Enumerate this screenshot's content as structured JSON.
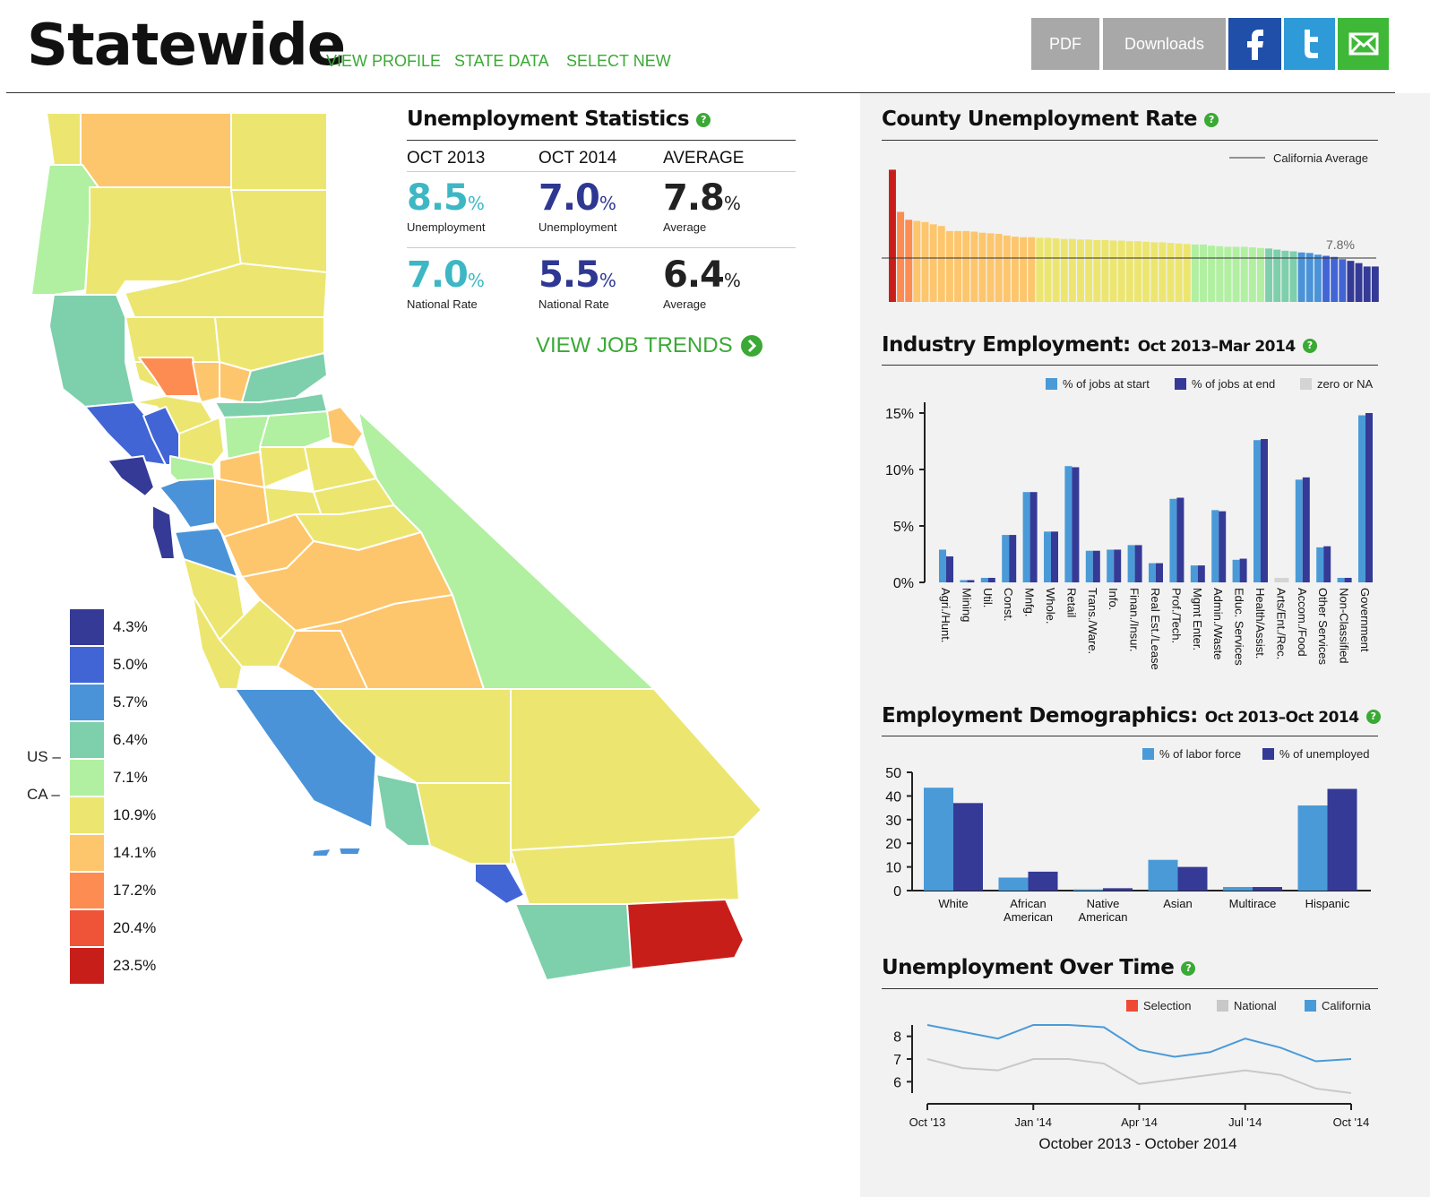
{
  "header": {
    "title": "Statewide",
    "nav": [
      "VIEW PROFILE",
      "STATE DATA",
      "SELECT NEW"
    ],
    "buttons": {
      "pdf": "PDF",
      "downloads": "Downloads"
    },
    "colors": {
      "pdf": "#a8a8a8",
      "downloads": "#a8a8a8",
      "facebook": "#1f4fa8",
      "twitter": "#2f9ad8",
      "email": "#3fb838"
    }
  },
  "map": {
    "legend": [
      {
        "label": "4.3%",
        "color": "#343a96"
      },
      {
        "label": "5.0%",
        "color": "#4265d6"
      },
      {
        "label": "5.7%",
        "color": "#4a93d8"
      },
      {
        "label": "6.4%",
        "color": "#7ecfac"
      },
      {
        "label": "7.1%",
        "color": "#b0f0a0"
      },
      {
        "label": "10.9%",
        "color": "#ece670"
      },
      {
        "label": "14.1%",
        "color": "#fdc66c"
      },
      {
        "label": "17.2%",
        "color": "#fd8c52"
      },
      {
        "label": "20.4%",
        "color": "#ef5338"
      },
      {
        "label": "23.5%",
        "color": "#c81e1a"
      }
    ],
    "markers": {
      "us": "US –",
      "ca": "CA –"
    }
  },
  "stats": {
    "title": "Unemployment Statistics",
    "columns": [
      "OCT 2013",
      "OCT 2014",
      "AVERAGE"
    ],
    "row1": [
      {
        "value": "8.5",
        "unit": "%",
        "label": "Unemployment",
        "color": "#3db7c4"
      },
      {
        "value": "7.0",
        "unit": "%",
        "label": "Unemployment",
        "color": "#2e3791"
      },
      {
        "value": "7.8",
        "unit": "%",
        "label": "Average",
        "color": "#222222"
      }
    ],
    "row2": [
      {
        "value": "7.0",
        "unit": "%",
        "label": "National Rate",
        "color": "#3db7c4"
      },
      {
        "value": "5.5",
        "unit": "%",
        "label": "National Rate",
        "color": "#2e3791"
      },
      {
        "value": "6.4",
        "unit": "%",
        "label": "Average",
        "color": "#222222"
      }
    ],
    "job_trends": "VIEW JOB TRENDS"
  },
  "county": {
    "title": "County Unemployment Rate",
    "legend": "California Average",
    "avg_label": "7.8%"
  },
  "industry": {
    "title": "Industry Employment:",
    "subtitle": "Oct 2013–Mar 2014",
    "legend": [
      "% of jobs at start",
      "% of jobs at end",
      "zero or NA"
    ]
  },
  "demographics": {
    "title": "Employment Demographics:",
    "subtitle": "Oct 2013–Oct 2014",
    "legend": [
      "% of labor force",
      "% of unemployed"
    ]
  },
  "overtime": {
    "title": "Unemployment Over Time",
    "legend": [
      "Selection",
      "National",
      "California"
    ],
    "xlabel": "October 2013 - October 2014"
  },
  "chart_data": [
    {
      "type": "bar",
      "name_key": "county",
      "values": [
        23.5,
        16.0,
        14.6,
        14.4,
        14.2,
        13.8,
        13.5,
        12.6,
        12.6,
        12.6,
        12.5,
        12.3,
        12.2,
        12.1,
        11.8,
        11.6,
        11.5,
        11.5,
        11.4,
        11.4,
        11.3,
        11.2,
        11.2,
        11.1,
        11.1,
        11.0,
        11.0,
        10.9,
        10.9,
        10.8,
        10.8,
        10.7,
        10.6,
        10.6,
        10.5,
        10.4,
        10.3,
        10.2,
        10.2,
        10.0,
        9.9,
        9.8,
        9.8,
        9.8,
        9.7,
        9.6,
        9.5,
        9.3,
        9.1,
        9.0,
        8.8,
        8.7,
        8.4,
        8.2,
        8.0,
        7.6,
        7.3,
        6.9,
        6.3,
        6.3
      ],
      "reference_line": 7.8,
      "ylim": [
        0,
        25
      ]
    },
    {
      "type": "bar",
      "name_key": "industry",
      "categories": [
        "Agri./Hunt.",
        "Mining",
        "Util.",
        "Const.",
        "Mnfg.",
        "Whole.",
        "Retail",
        "Trans./Ware.",
        "Info.",
        "Finan./Insur.",
        "Real Est./Lease",
        "Prof./Tech.",
        "Mgmt Enter.",
        "Admin./Waste",
        "Educ. Services",
        "Health/Assist.",
        "Arts/Ent./Rec.",
        "Accom./Food",
        "Other Services",
        "Non-Classified",
        "Government"
      ],
      "series": [
        {
          "name": "% of jobs at start",
          "values": [
            2.9,
            0.2,
            0.4,
            4.2,
            8.0,
            4.5,
            10.3,
            2.8,
            2.9,
            3.3,
            1.7,
            7.4,
            1.5,
            6.4,
            2.0,
            12.6,
            0.4,
            9.1,
            3.1,
            0.4,
            14.8
          ]
        },
        {
          "name": "% of jobs at end",
          "values": [
            2.3,
            0.2,
            0.4,
            4.2,
            8.0,
            4.5,
            10.2,
            2.8,
            2.9,
            3.3,
            1.7,
            7.5,
            1.5,
            6.3,
            2.1,
            12.7,
            0.4,
            9.3,
            3.2,
            0.4,
            15.0
          ]
        }
      ],
      "zero_or_na": [
        false,
        false,
        false,
        false,
        false,
        false,
        false,
        false,
        false,
        false,
        false,
        false,
        false,
        false,
        false,
        false,
        true,
        false,
        false,
        false,
        false
      ],
      "yticks": [
        "0%",
        "5%",
        "10%",
        "15%"
      ],
      "ylim": [
        0,
        15
      ]
    },
    {
      "type": "bar",
      "name_key": "demographics",
      "categories": [
        "White",
        "African American",
        "Native American",
        "Asian",
        "Multirace",
        "Hispanic"
      ],
      "series": [
        {
          "name": "% of labor force",
          "values": [
            43.5,
            5.5,
            0.5,
            13.0,
            1.5,
            36.0
          ]
        },
        {
          "name": "% of unemployed",
          "values": [
            37.0,
            8.0,
            1.0,
            10.0,
            1.5,
            43.0
          ]
        }
      ],
      "yticks": [
        "0",
        "10",
        "20",
        "30",
        "40",
        "50"
      ],
      "ylim": [
        0,
        50
      ]
    },
    {
      "type": "line",
      "name_key": "overtime",
      "x": [
        "Oct '13",
        "Nov '13",
        "Dec '13",
        "Jan '14",
        "Feb '14",
        "Mar '14",
        "Apr '14",
        "May '14",
        "Jun '14",
        "Jul '14",
        "Aug '14",
        "Sep '14",
        "Oct '14"
      ],
      "xticks": [
        "Oct '13",
        "Jan '14",
        "Apr '14",
        "Jul '14",
        "Oct '14"
      ],
      "series": [
        {
          "name": "California",
          "values": [
            8.5,
            8.2,
            7.9,
            8.5,
            8.5,
            8.4,
            7.4,
            7.1,
            7.3,
            7.9,
            7.5,
            6.9,
            7.0
          ]
        },
        {
          "name": "National",
          "values": [
            7.0,
            6.6,
            6.5,
            7.0,
            7.0,
            6.8,
            5.9,
            6.1,
            6.3,
            6.5,
            6.3,
            5.7,
            5.5
          ]
        }
      ],
      "yticks": [
        "6",
        "7",
        "8"
      ],
      "ylim": [
        5.5,
        8.5
      ]
    }
  ]
}
